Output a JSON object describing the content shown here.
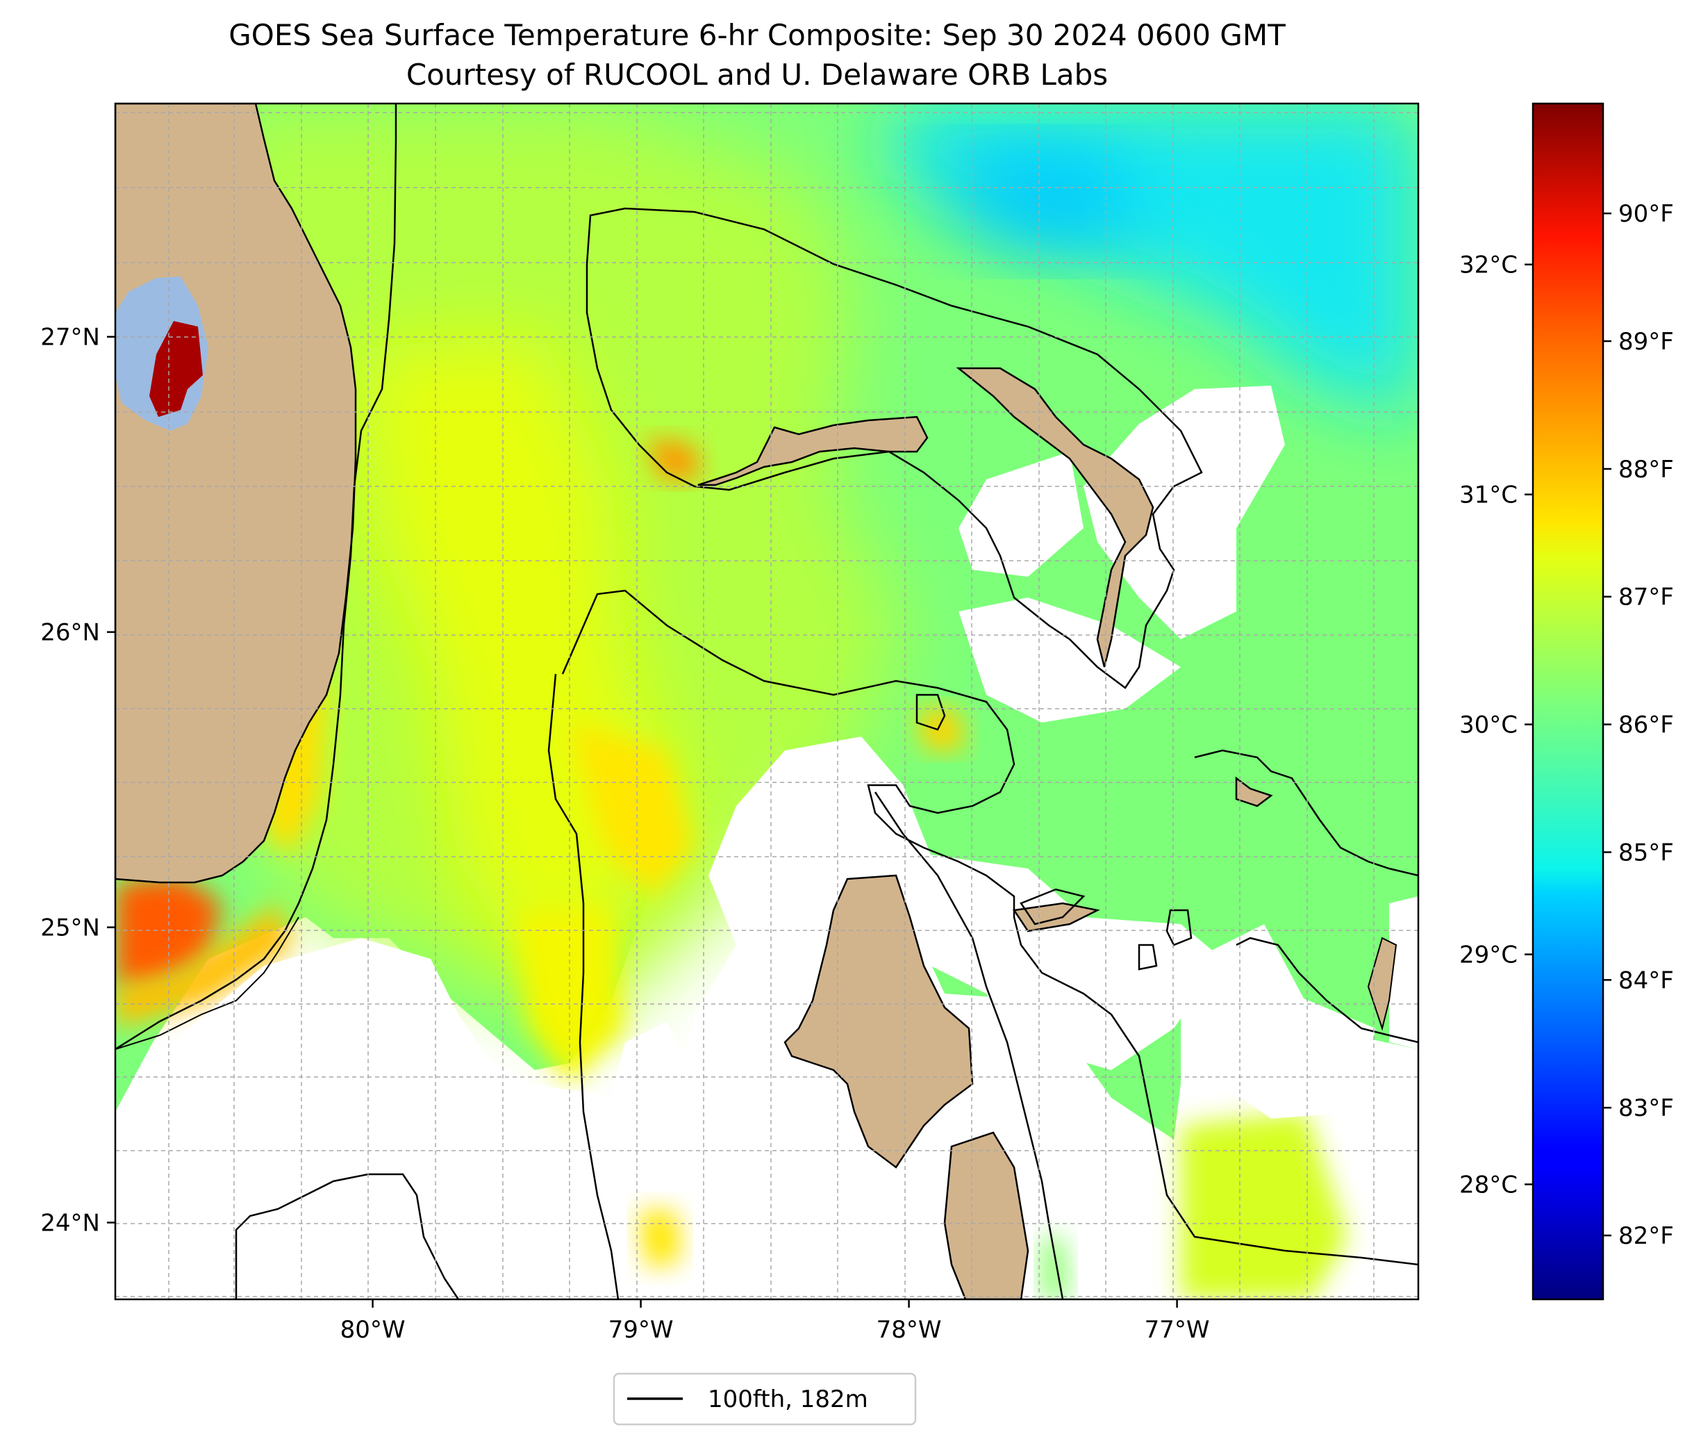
{
  "figure": {
    "title_line1": "GOES Sea Surface Temperature 6-hr Composite: Sep 30 2024 0600 GMT",
    "title_line2": "Courtesy of RUCOOL and U. Delaware ORB Labs"
  },
  "map": {
    "lon_range": [
      -80.96,
      -76.1
    ],
    "lat_range": [
      23.74,
      27.79
    ],
    "lon_ticks": [
      {
        "value": -80,
        "label": "80°W"
      },
      {
        "value": -79,
        "label": "79°W"
      },
      {
        "value": -78,
        "label": "78°W"
      },
      {
        "value": -77,
        "label": "77°W"
      }
    ],
    "lat_ticks": [
      {
        "value": 24,
        "label": "24°N"
      },
      {
        "value": 25,
        "label": "25°N"
      },
      {
        "value": 26,
        "label": "26°N"
      },
      {
        "value": 27,
        "label": "27°N"
      }
    ],
    "gridlines": true,
    "colors": {
      "land": "#d2b48c",
      "lake": "#9bbbe2",
      "nodata": "#ffffff"
    }
  },
  "colorbar": {
    "colormap": "jet",
    "range_c": [
      27.5,
      32.7
    ],
    "celsius_ticks": [
      {
        "value": 28,
        "label": "28°C"
      },
      {
        "value": 29,
        "label": "29°C"
      },
      {
        "value": 30,
        "label": "30°C"
      },
      {
        "value": 31,
        "label": "31°C"
      },
      {
        "value": 32,
        "label": "32°C"
      }
    ],
    "fahrenheit_ticks": [
      {
        "value": 82,
        "label": "82°F"
      },
      {
        "value": 83,
        "label": "83°F"
      },
      {
        "value": 84,
        "label": "84°F"
      },
      {
        "value": 85,
        "label": "85°F"
      },
      {
        "value": 86,
        "label": "86°F"
      },
      {
        "value": 87,
        "label": "87°F"
      },
      {
        "value": 88,
        "label": "88°F"
      },
      {
        "value": 89,
        "label": "89°F"
      },
      {
        "value": 90,
        "label": "90°F"
      }
    ]
  },
  "legend": {
    "label": "100fth, 182m",
    "placement": "bottom-center",
    "line_color": "#000000"
  }
}
